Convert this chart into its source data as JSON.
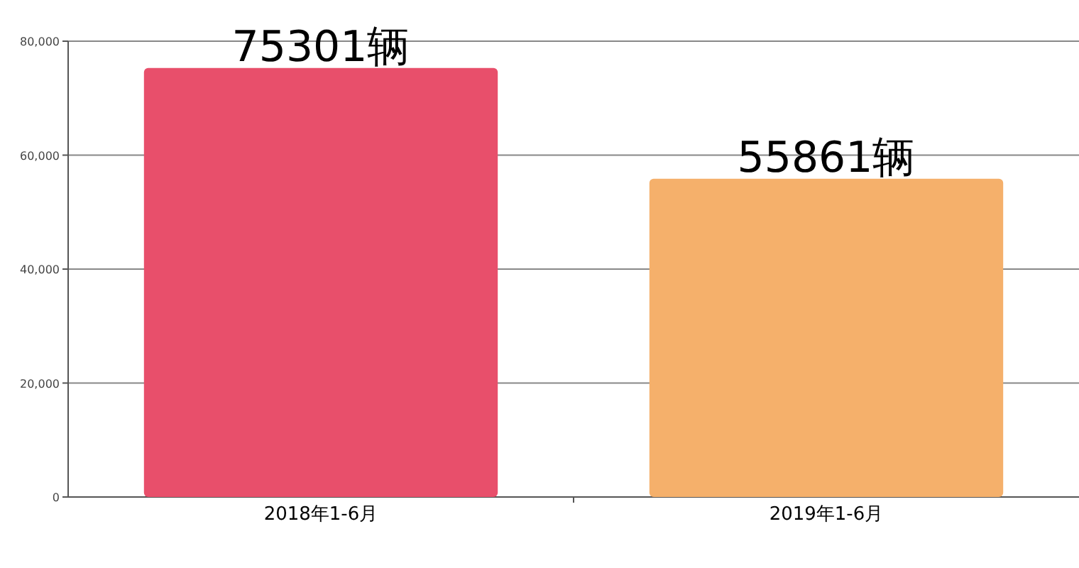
{
  "chart_data": {
    "type": "bar",
    "categories": [
      "2018年1-6月",
      "2019年1-6月"
    ],
    "values": [
      75301,
      55861
    ],
    "colors": [
      "#e84f6b",
      "#f5b06b"
    ],
    "value_labels": [
      "75301辆",
      "55861辆"
    ],
    "ylim": [
      0,
      80000
    ],
    "yticks": [
      {
        "value": 0,
        "label": "0"
      },
      {
        "value": 20000,
        "label": "20,000"
      },
      {
        "value": 40000,
        "label": "40,000"
      },
      {
        "value": 60000,
        "label": "60,000"
      },
      {
        "value": 80000,
        "label": "80,000"
      }
    ],
    "grid": "y"
  }
}
